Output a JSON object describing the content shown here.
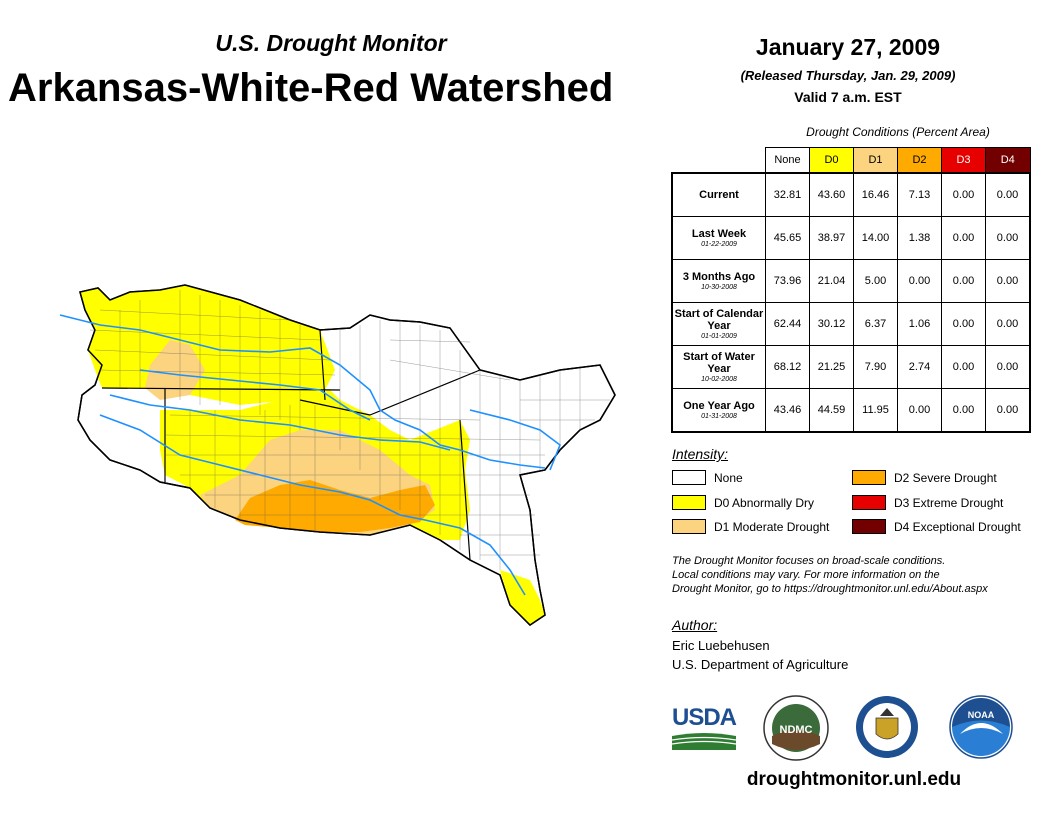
{
  "header": {
    "subtitle": "U.S. Drought Monitor",
    "title": "Arkansas-White-Red Watershed"
  },
  "date": "January 27, 2009",
  "released": "(Released Thursday, Jan. 29, 2009)",
  "valid": "Valid 7 a.m. EST",
  "table": {
    "caption": "Drought Conditions (Percent Area)",
    "columns": [
      "None",
      "D0",
      "D1",
      "D2",
      "D3",
      "D4"
    ],
    "column_colors": [
      "#ffffff",
      "#ffff00",
      "#fcd37f",
      "#ffaa00",
      "#e60000",
      "#730000"
    ],
    "rows": [
      {
        "label": "Current",
        "sub": "",
        "values": [
          "32.81",
          "43.60",
          "16.46",
          "7.13",
          "0.00",
          "0.00"
        ]
      },
      {
        "label": "Last Week",
        "sub": "01-22-2009",
        "values": [
          "45.65",
          "38.97",
          "14.00",
          "1.38",
          "0.00",
          "0.00"
        ]
      },
      {
        "label": "3 Months Ago",
        "sub": "10-30-2008",
        "values": [
          "73.96",
          "21.04",
          "5.00",
          "0.00",
          "0.00",
          "0.00"
        ]
      },
      {
        "label": "Start of Calendar Year",
        "sub": "01-01-2009",
        "values": [
          "62.44",
          "30.12",
          "6.37",
          "1.06",
          "0.00",
          "0.00"
        ]
      },
      {
        "label": "Start of Water Year",
        "sub": "10-02-2008",
        "values": [
          "68.12",
          "21.25",
          "7.90",
          "2.74",
          "0.00",
          "0.00"
        ]
      },
      {
        "label": "One Year Ago",
        "sub": "01-31-2008",
        "values": [
          "43.46",
          "44.59",
          "11.95",
          "0.00",
          "0.00",
          "0.00"
        ]
      }
    ]
  },
  "legend": {
    "heading": "Intensity:",
    "items": [
      {
        "label": "None",
        "color": "#ffffff"
      },
      {
        "label": "D0 Abnormally Dry",
        "color": "#ffff00"
      },
      {
        "label": "D1 Moderate Drought",
        "color": "#fcd37f"
      },
      {
        "label": "D2 Severe Drought",
        "color": "#ffaa00"
      },
      {
        "label": "D3 Extreme Drought",
        "color": "#e60000"
      },
      {
        "label": "D4 Exceptional Drought",
        "color": "#730000"
      }
    ]
  },
  "note": {
    "line1": "The Drought Monitor focuses on broad-scale conditions.",
    "line2": "Local conditions may vary. For more information on the",
    "line3": "Drought Monitor, go to https://droughtmonitor.unl.edu/About.aspx"
  },
  "author": {
    "heading": "Author:",
    "name": "Eric Luebehusen",
    "org": "U.S. Department of Agriculture"
  },
  "logos": {
    "usda": "USDA",
    "ndmc": "NDMC",
    "noaa": "NOAA"
  },
  "footer_url": "droughtmonitor.unl.edu"
}
